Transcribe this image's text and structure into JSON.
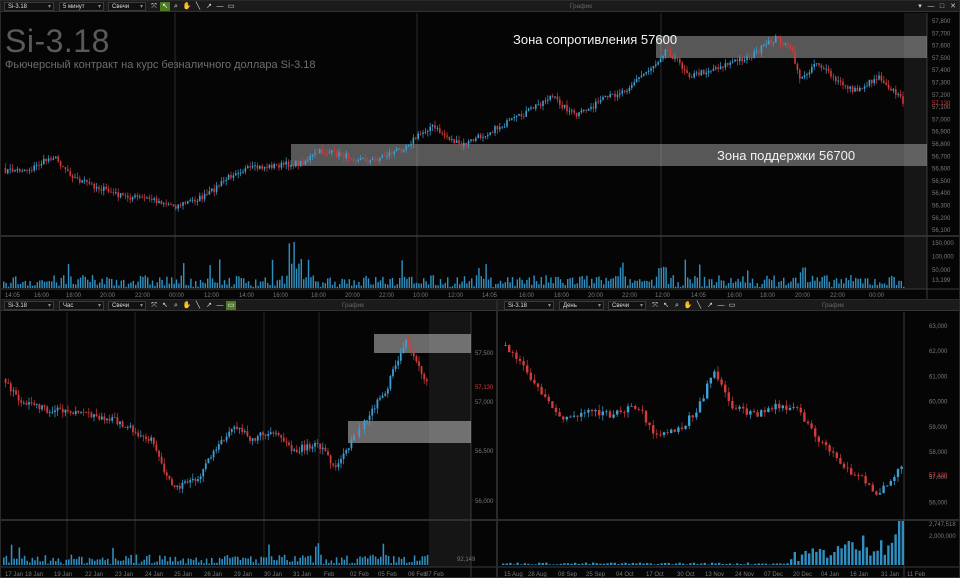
{
  "main": {
    "toolbar": {
      "symbol": "Si-3.18",
      "interval": "5 минут",
      "chart_type": "Свечи",
      "title": "График",
      "window_buttons": [
        "▾",
        "—",
        "□",
        "✕"
      ]
    },
    "watermark": "Si-3.18",
    "subtitle": "Фьючерсный контракт на курс безналичного доллара Si-3.18",
    "zones": {
      "resistance": "Зона сопротивления 57600",
      "support": "Зона поддержки 56700"
    },
    "price_axis": [
      "57,800",
      "57,700",
      "57,600",
      "57,500",
      "57,400",
      "57,300",
      "57,200",
      "57,100",
      "57,000",
      "56,900",
      "56,800",
      "56,700",
      "56,600",
      "56,500",
      "56,400",
      "56,300",
      "56,200",
      "56,100"
    ],
    "current_price": "57,130",
    "volume_axis": [
      "150,000",
      "100,000",
      "50,000"
    ],
    "current_volume": "13,199",
    "time_axis": [
      "14:05",
      "16:00",
      "18:00",
      "20:00",
      "22:00",
      "00:00",
      "12:00",
      "14:00",
      "16:00",
      "18:00",
      "20:00",
      "22:00",
      "10:00",
      "12:00",
      "14:05",
      "16:00",
      "18:00",
      "20:00",
      "22:00",
      "12:00",
      "14:05",
      "16:00",
      "18:00",
      "20:00",
      "22:00",
      "00:00"
    ]
  },
  "left": {
    "toolbar": {
      "symbol": "Si-3.18",
      "interval": "Час",
      "chart_type": "Свечи",
      "title": "График"
    },
    "price_axis": [
      "57,500",
      "57,000",
      "56,500",
      "56,000"
    ],
    "current_price": "57,130",
    "current_volume": "92,149",
    "time_axis": [
      "17 Jan",
      "18 Jan",
      "19 Jan",
      "22 Jan",
      "23 Jan",
      "24 Jan",
      "25 Jan",
      "26 Jan",
      "29 Jan",
      "30 Jan",
      "31 Jan",
      "Feb",
      "02 Feb",
      "05 Feb",
      "06 Feb",
      "07 Feb"
    ]
  },
  "right": {
    "toolbar": {
      "symbol": "Si-3.18",
      "interval": "День",
      "chart_type": "Свечи",
      "title": "График"
    },
    "price_axis": [
      "63,000",
      "62,000",
      "61,000",
      "60,000",
      "59,000",
      "58,000",
      "57,000",
      "56,000"
    ],
    "current_price": "57,130",
    "volume_axis": [
      "2,000,000"
    ],
    "current_volume": "2,747,518",
    "time_axis": [
      "15 Aug",
      "28 Aug",
      "08 Sep",
      "25 Sep",
      "04 Oct",
      "17 Oct",
      "30 Oct",
      "13 Nov",
      "24 Nov",
      "07 Dec",
      "20 Dec",
      "04 Jan",
      "16 Jan",
      "31 Jan",
      "11 Feb"
    ]
  },
  "tools": [
    "pointer-icon",
    "cursor-icon",
    "zoom-icon",
    "hand-icon",
    "line-icon",
    "arrow-icon",
    "hline-icon",
    "rect-icon"
  ],
  "colors": {
    "up": "#3d9fd3",
    "down": "#d23b3b",
    "zone": "#bdbdbd",
    "volume": "#2f8fc0"
  }
}
